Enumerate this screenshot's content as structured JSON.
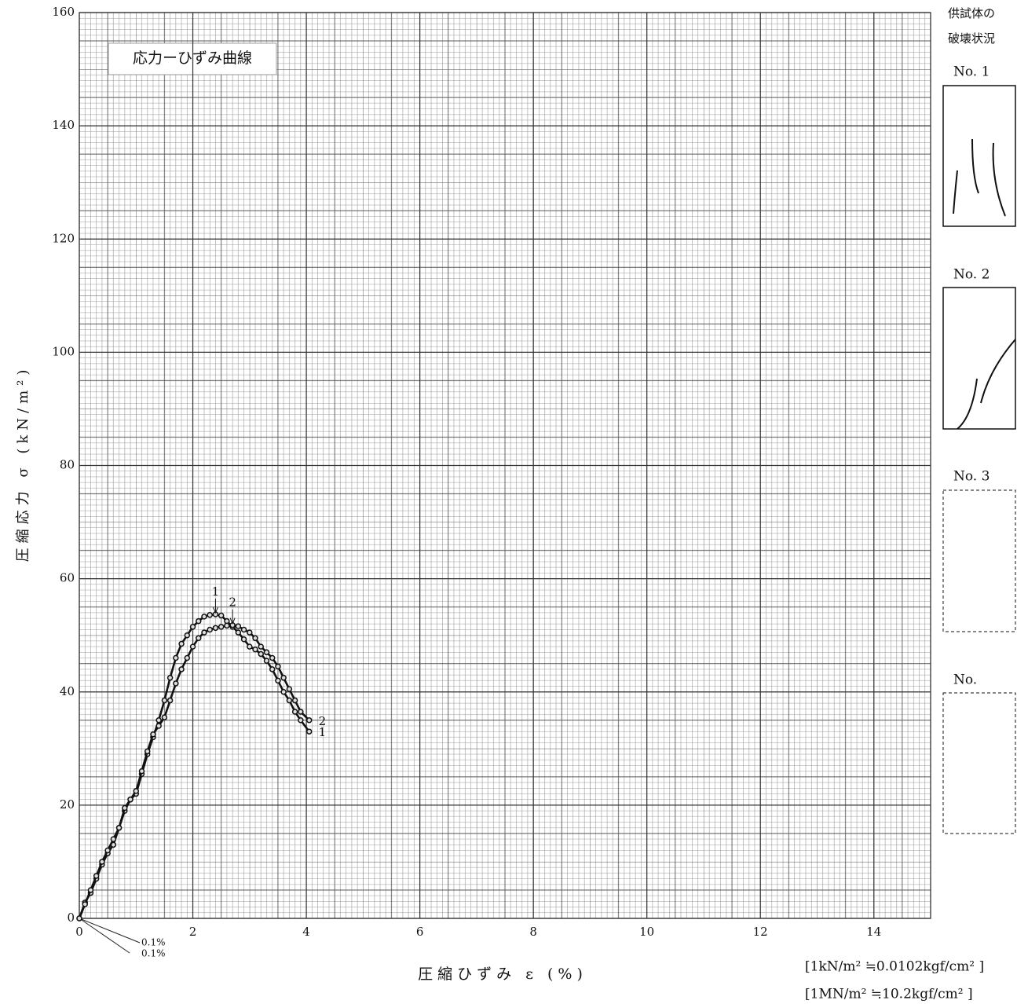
{
  "chart_data": {
    "type": "line",
    "title": "応力ーひずみ曲線",
    "xlabel": "圧縮ひずみ ε (%)",
    "ylabel": "圧縮応力 σ (kN/m²)",
    "x": [
      0,
      0.1,
      0.2,
      0.3,
      0.4,
      0.5,
      0.6,
      0.7,
      0.8,
      0.9,
      1.0,
      1.1,
      1.2,
      1.3,
      1.4,
      1.5,
      1.6,
      1.7,
      1.8,
      1.9,
      2.0,
      2.1,
      2.2,
      2.3,
      2.4,
      2.5,
      2.6,
      2.7,
      2.8,
      2.9,
      3.0,
      3.1,
      3.2,
      3.3,
      3.4,
      3.5,
      3.6,
      3.7,
      3.8,
      3.9,
      4.05
    ],
    "series": [
      {
        "name": "1",
        "color": "#111111",
        "values": [
          0,
          2.8,
          4.5,
          7,
          9.5,
          11.5,
          13,
          16,
          19,
          21,
          22,
          25.5,
          29,
          32,
          35,
          38.5,
          42.5,
          46,
          48.5,
          50,
          51.5,
          52.5,
          53.3,
          53.6,
          53.7,
          53.5,
          52.5,
          51.5,
          50.5,
          49.3,
          48,
          47.5,
          46.7,
          45.5,
          44,
          42,
          40,
          38.5,
          36.5,
          35,
          33
        ]
      },
      {
        "name": "2",
        "color": "#111111",
        "values": [
          0,
          2.5,
          5,
          7.5,
          10,
          12,
          14,
          16,
          19.5,
          21,
          22.5,
          26,
          29.5,
          32.5,
          34,
          35.5,
          38.5,
          41.5,
          44,
          46,
          48,
          49.5,
          50.5,
          51,
          51.3,
          51.5,
          51.7,
          51.8,
          51.6,
          51,
          50.5,
          49.5,
          48,
          47,
          46,
          44.5,
          42.5,
          40.5,
          38.5,
          36.5,
          35
        ]
      }
    ],
    "xlim": [
      0,
      15
    ],
    "xticks": [
      0,
      2,
      4,
      6,
      8,
      10,
      12,
      14
    ],
    "ylim": [
      0,
      160
    ],
    "yticks": [
      0,
      20,
      40,
      60,
      80,
      100,
      120,
      140,
      160
    ],
    "grid": true,
    "annotations": [
      "0.1%",
      "0.1%"
    ],
    "notes": [
      "[1kN/m² ≒0.0102kgf/cm² ]",
      "[1MN/m² ≒10.2kgf/cm² ]"
    ]
  },
  "side_panel": {
    "title": [
      "供試体の",
      "破壊状況"
    ],
    "specimens": [
      "No. 1",
      "No. 2",
      "No. 3",
      "No."
    ]
  }
}
